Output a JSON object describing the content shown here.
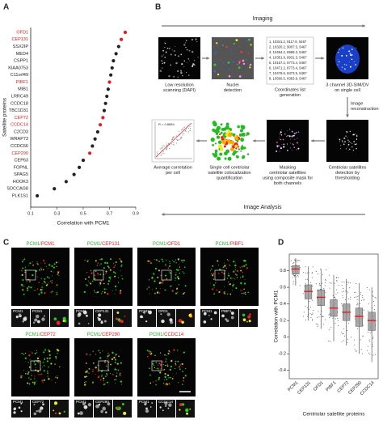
{
  "chart_data": [
    {
      "type": "dot",
      "panel": "A",
      "y_label": "Satellite proteins",
      "x_label": "Correlation with PCM1",
      "categories": [
        "OFD1",
        "CEP131",
        "SSX2IP",
        "MED4",
        "CSPP1",
        "KIAA0753",
        "C11orf49",
        "PIBF1",
        "MIB1",
        "LRRC49",
        "CCDC18",
        "TBC1D31",
        "CEP72",
        "CCDC14",
        "C2CD3",
        "WRAP73",
        "CCDC66",
        "CEP290",
        "CEP63",
        "FOPNL",
        "SPAG5",
        "HOOK3",
        "SDCCAG8",
        "PLK1S1"
      ],
      "values": [
        0.82,
        0.79,
        0.77,
        0.75,
        0.73,
        0.72,
        0.71,
        0.7,
        0.69,
        0.68,
        0.67,
        0.66,
        0.65,
        0.63,
        0.61,
        0.59,
        0.57,
        0.55,
        0.5,
        0.47,
        0.43,
        0.37,
        0.28,
        0.15
      ],
      "colors": [
        "#e41a1c",
        "#e41a1c",
        "#222222",
        "#222222",
        "#222222",
        "#222222",
        "#222222",
        "#e41a1c",
        "#222222",
        "#222222",
        "#222222",
        "#222222",
        "#e41a1c",
        "#e41a1c",
        "#222222",
        "#222222",
        "#222222",
        "#e41a1c",
        "#222222",
        "#222222",
        "#222222",
        "#222222",
        "#222222",
        "#222222"
      ],
      "xlim": [
        0.1,
        0.9
      ],
      "xticks": [
        0.1,
        0.3,
        0.5,
        0.7,
        0.9
      ]
    },
    {
      "type": "box",
      "panel": "D",
      "y_label": "Correlation with PCM1",
      "x_label": "Centriolar satellite proteins",
      "categories": [
        "PCM1",
        "CEP131",
        "OFD1",
        "PIBF1",
        "CEP72",
        "CEP290",
        "CCDC14"
      ],
      "q1": [
        0.76,
        0.46,
        0.38,
        0.25,
        0.2,
        0.13,
        0.08
      ],
      "median": [
        0.82,
        0.55,
        0.48,
        0.35,
        0.3,
        0.25,
        0.2
      ],
      "q3": [
        0.86,
        0.63,
        0.57,
        0.45,
        0.4,
        0.35,
        0.3
      ],
      "whisker_low": [
        0.62,
        0.2,
        0.1,
        -0.05,
        -0.1,
        -0.2,
        -0.3
      ],
      "whisker_high": [
        0.95,
        0.85,
        0.82,
        0.75,
        0.7,
        0.65,
        0.6
      ],
      "ylim": [
        -0.5,
        1.0
      ],
      "yticks": [
        -0.4,
        -0.2,
        0,
        0.2,
        0.4,
        0.6,
        0.8
      ],
      "box_color": "#8c8c8c",
      "median_color": "#e41a1c"
    }
  ],
  "workflow": {
    "panel": "B",
    "top_label": "Imaging",
    "bottom_label": "Image Analysis",
    "side_label": [
      "Image",
      "reconstruction"
    ],
    "steps": [
      {
        "label": [
          "Low resolution",
          "scanning (DAPI)"
        ]
      },
      {
        "label": [
          "Nuclei",
          "detection"
        ]
      },
      {
        "label": [
          "Coordinates list",
          "generation"
        ]
      },
      {
        "label": [
          "3 channel 3D-SIM/DV",
          "on single cell"
        ]
      },
      {
        "label": [
          "Centriolar satellites",
          "detection by",
          "thresholding"
        ]
      },
      {
        "label": [
          "Masking",
          "centriolar satellites",
          "using composite mask for",
          "both channels"
        ]
      },
      {
        "label": [
          "Single cell centriolar",
          "satellite colocalization",
          "quantification"
        ]
      },
      {
        "label": [
          "Average correlation",
          "per cell"
        ]
      }
    ],
    "coordinates": [
      "1, 10341.2, 9117.8, 5467",
      "2, 10320.2, 9007.5, 5467",
      "3, 10484.2, 8968.3, 5467",
      "4, 10351.9, 8931.3, 5467",
      "5, 10167.2, 8773.4, 5467",
      "6, 10471.2, 8773.4, 5467",
      "7, 10479.6, 8473.5, 5467",
      "8, 10560.5, 8363.8, 5467"
    ],
    "r_text": "R = 0.8854"
  },
  "microscopy": {
    "panel": "C",
    "channel": "PCM1/",
    "inset_channel": "PCM1",
    "tiles": [
      "PCM1",
      "CEP131",
      "OFD1",
      "PIBF1",
      "CEP72",
      "CEP290",
      "CCDC14"
    ]
  }
}
